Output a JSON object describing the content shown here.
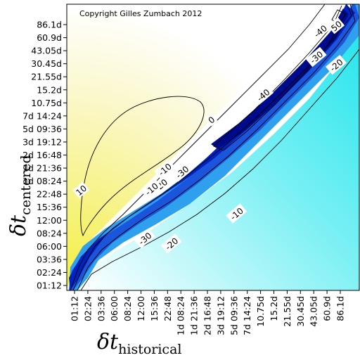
{
  "chart_data": {
    "type": "heatmap",
    "title": "",
    "annotation": "Copyright Gilles Zumbach 2012",
    "xlabel": {
      "symbol": "δt",
      "subscript": "historical"
    },
    "ylabel": {
      "symbol": "δt",
      "subscript": "centered"
    },
    "x_ticks": [
      "01:12",
      "02:24",
      "03:36",
      "06:00",
      "08:24",
      "12:00",
      "15:36",
      "22:48",
      "1d 08:24",
      "1d 21:36",
      "2d 16:48",
      "3d 19:12",
      "5d 09:36",
      "7d 14:24",
      "10.75d",
      "15.2d",
      "21.55d",
      "30.45d",
      "43.05d",
      "60.9d",
      "86.1d"
    ],
    "y_ticks": [
      "01:12",
      "02:24",
      "03:36",
      "06:00",
      "08:24",
      "12:00",
      "15:36",
      "22:48",
      "1d 08:24",
      "1d 21:36",
      "2d 16:48",
      "3d 19:12",
      "5d 09:36",
      "7d 14:24",
      "10.75d",
      "15.2d",
      "21.55d",
      "30.45d",
      "43.05d",
      "60.9d",
      "86.1d"
    ],
    "grid": false,
    "legend": "none",
    "colors": {
      "positive": "#f2ee3c",
      "zero": "#ffffff",
      "negative_light": "#20e6ec",
      "negative_strong": "#0018b4"
    },
    "contour_labels": [
      {
        "text": "50",
        "x_index": 19.7,
        "y_index": 19.9
      },
      {
        "text": "-40",
        "x_index": 18.5,
        "y_index": 19.5
      },
      {
        "text": "-30",
        "x_index": 18.2,
        "y_index": 17.5
      },
      {
        "text": "-20",
        "x_index": 19.7,
        "y_index": 16.9
      },
      {
        "text": "-40",
        "x_index": 14.2,
        "y_index": 14.6
      },
      {
        "text": "0",
        "x_index": 10.3,
        "y_index": 12.7
      },
      {
        "text": "-10",
        "x_index": 6.8,
        "y_index": 8.9
      },
      {
        "text": "-30",
        "x_index": 8.1,
        "y_index": 8.7
      },
      {
        "text": "-20",
        "x_index": 6.5,
        "y_index": 7.7
      },
      {
        "text": "-10",
        "x_index": 5.8,
        "y_index": 7.4
      },
      {
        "text": "10",
        "x_index": 0.5,
        "y_index": 7.3
      },
      {
        "text": "-10",
        "x_index": 12.2,
        "y_index": 5.5
      },
      {
        "text": "-30",
        "x_index": 5.3,
        "y_index": 3.6
      },
      {
        "text": "-20",
        "x_index": 7.3,
        "y_index": 3.2
      }
    ]
  }
}
